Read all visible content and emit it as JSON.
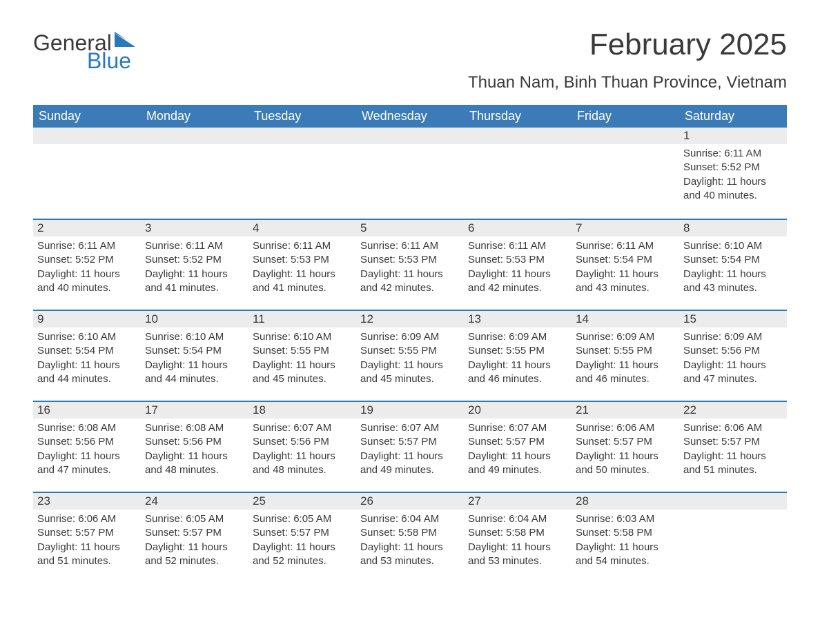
{
  "logo": {
    "text1": "General",
    "text2": "Blue",
    "accent_color": "#2a7ab9"
  },
  "header": {
    "month_title": "February 2025",
    "location": "Thuan Nam, Binh Thuan Province, Vietnam"
  },
  "colors": {
    "header_bg": "#3b7bb7",
    "header_text": "#ffffff",
    "band_bg": "#ececec",
    "week_border": "#2a7ab9",
    "text": "#3a3a3a",
    "page_bg": "#ffffff"
  },
  "days_of_week": [
    "Sunday",
    "Monday",
    "Tuesday",
    "Wednesday",
    "Thursday",
    "Friday",
    "Saturday"
  ],
  "weeks": [
    [
      null,
      null,
      null,
      null,
      null,
      null,
      {
        "n": "1",
        "sr": "6:11 AM",
        "ss": "5:52 PM",
        "dl": "11 hours and 40 minutes."
      }
    ],
    [
      {
        "n": "2",
        "sr": "6:11 AM",
        "ss": "5:52 PM",
        "dl": "11 hours and 40 minutes."
      },
      {
        "n": "3",
        "sr": "6:11 AM",
        "ss": "5:52 PM",
        "dl": "11 hours and 41 minutes."
      },
      {
        "n": "4",
        "sr": "6:11 AM",
        "ss": "5:53 PM",
        "dl": "11 hours and 41 minutes."
      },
      {
        "n": "5",
        "sr": "6:11 AM",
        "ss": "5:53 PM",
        "dl": "11 hours and 42 minutes."
      },
      {
        "n": "6",
        "sr": "6:11 AM",
        "ss": "5:53 PM",
        "dl": "11 hours and 42 minutes."
      },
      {
        "n": "7",
        "sr": "6:11 AM",
        "ss": "5:54 PM",
        "dl": "11 hours and 43 minutes."
      },
      {
        "n": "8",
        "sr": "6:10 AM",
        "ss": "5:54 PM",
        "dl": "11 hours and 43 minutes."
      }
    ],
    [
      {
        "n": "9",
        "sr": "6:10 AM",
        "ss": "5:54 PM",
        "dl": "11 hours and 44 minutes."
      },
      {
        "n": "10",
        "sr": "6:10 AM",
        "ss": "5:54 PM",
        "dl": "11 hours and 44 minutes."
      },
      {
        "n": "11",
        "sr": "6:10 AM",
        "ss": "5:55 PM",
        "dl": "11 hours and 45 minutes."
      },
      {
        "n": "12",
        "sr": "6:09 AM",
        "ss": "5:55 PM",
        "dl": "11 hours and 45 minutes."
      },
      {
        "n": "13",
        "sr": "6:09 AM",
        "ss": "5:55 PM",
        "dl": "11 hours and 46 minutes."
      },
      {
        "n": "14",
        "sr": "6:09 AM",
        "ss": "5:55 PM",
        "dl": "11 hours and 46 minutes."
      },
      {
        "n": "15",
        "sr": "6:09 AM",
        "ss": "5:56 PM",
        "dl": "11 hours and 47 minutes."
      }
    ],
    [
      {
        "n": "16",
        "sr": "6:08 AM",
        "ss": "5:56 PM",
        "dl": "11 hours and 47 minutes."
      },
      {
        "n": "17",
        "sr": "6:08 AM",
        "ss": "5:56 PM",
        "dl": "11 hours and 48 minutes."
      },
      {
        "n": "18",
        "sr": "6:07 AM",
        "ss": "5:56 PM",
        "dl": "11 hours and 48 minutes."
      },
      {
        "n": "19",
        "sr": "6:07 AM",
        "ss": "5:57 PM",
        "dl": "11 hours and 49 minutes."
      },
      {
        "n": "20",
        "sr": "6:07 AM",
        "ss": "5:57 PM",
        "dl": "11 hours and 49 minutes."
      },
      {
        "n": "21",
        "sr": "6:06 AM",
        "ss": "5:57 PM",
        "dl": "11 hours and 50 minutes."
      },
      {
        "n": "22",
        "sr": "6:06 AM",
        "ss": "5:57 PM",
        "dl": "11 hours and 51 minutes."
      }
    ],
    [
      {
        "n": "23",
        "sr": "6:06 AM",
        "ss": "5:57 PM",
        "dl": "11 hours and 51 minutes."
      },
      {
        "n": "24",
        "sr": "6:05 AM",
        "ss": "5:57 PM",
        "dl": "11 hours and 52 minutes."
      },
      {
        "n": "25",
        "sr": "6:05 AM",
        "ss": "5:57 PM",
        "dl": "11 hours and 52 minutes."
      },
      {
        "n": "26",
        "sr": "6:04 AM",
        "ss": "5:58 PM",
        "dl": "11 hours and 53 minutes."
      },
      {
        "n": "27",
        "sr": "6:04 AM",
        "ss": "5:58 PM",
        "dl": "11 hours and 53 minutes."
      },
      {
        "n": "28",
        "sr": "6:03 AM",
        "ss": "5:58 PM",
        "dl": "11 hours and 54 minutes."
      },
      null
    ]
  ],
  "labels": {
    "sunrise": "Sunrise: ",
    "sunset": "Sunset: ",
    "daylight": "Daylight: "
  }
}
